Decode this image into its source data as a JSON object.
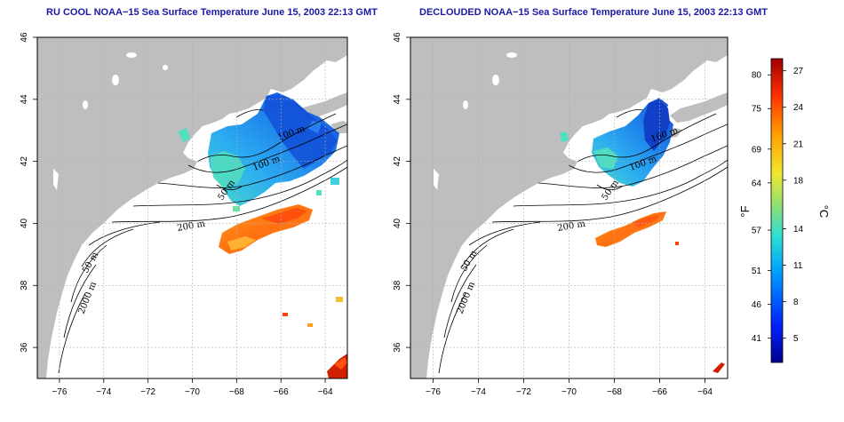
{
  "panels": [
    {
      "title": "RU COOL NOAA−15 Sea Surface Temperature June 15, 2003 22:13 GMT",
      "contour_labels": [
        "100 m",
        "100 m",
        "50 m",
        "200 m",
        "50 m",
        "2000 m"
      ]
    },
    {
      "title": "DECLOUDED NOAA−15 Sea Surface Temperature June 15, 2003 22:13 GMT",
      "contour_labels": [
        "100 m",
        "100 m",
        "50 m",
        "200 m",
        "50 m",
        "2000 m"
      ]
    }
  ],
  "axes": {
    "x_ticks": [
      "−76",
      "−74",
      "−72",
      "−70",
      "−68",
      "−66",
      "−64"
    ],
    "y_ticks": [
      "36",
      "38",
      "40",
      "42",
      "44",
      "46"
    ],
    "x_range": [
      -77,
      -63
    ],
    "y_range": [
      35,
      46
    ]
  },
  "colorbar": {
    "fahrenheit_label": "°F",
    "celsius_label": "°C",
    "fahrenheit_ticks": [
      "41",
      "46",
      "51",
      "57",
      "64",
      "69",
      "75",
      "80"
    ],
    "celsius_ticks": [
      "5",
      "8",
      "11",
      "14",
      "18",
      "21",
      "24",
      "27"
    ],
    "colors": [
      "#0000c8",
      "#0050ff",
      "#00b4ff",
      "#40e0c0",
      "#a0e060",
      "#f0e030",
      "#ffa000",
      "#ff4000",
      "#c80000",
      "#8c0000"
    ]
  },
  "colors": {
    "land": "#bebebe",
    "grid": "#b0b0b0",
    "title": "#1a1aa6"
  }
}
